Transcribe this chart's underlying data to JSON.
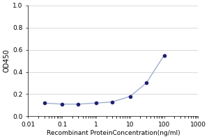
{
  "x": [
    0.03,
    0.1,
    0.3,
    1,
    3,
    10,
    30,
    100
  ],
  "y": [
    0.12,
    0.11,
    0.11,
    0.12,
    0.13,
    0.18,
    0.3,
    0.55
  ],
  "line_color": "#a0aece",
  "marker_color": "#1a1a6e",
  "marker_size": 3.5,
  "xlabel": "Recombinant ProteinConcentration(ng/ml)",
  "ylabel": "OD450",
  "xlim": [
    0.01,
    1000
  ],
  "ylim": [
    0,
    1
  ],
  "yticks": [
    0,
    0.2,
    0.4,
    0.6,
    0.8,
    1
  ],
  "xticks": [
    0.01,
    0.1,
    1,
    10,
    100,
    1000
  ],
  "xtick_labels": [
    "0.01",
    "0.1",
    "1",
    "10",
    "100",
    "1000"
  ],
  "background_color": "#ffffff",
  "grid_color": "#d8d8d8",
  "xlabel_fontsize": 6.5,
  "ylabel_fontsize": 7,
  "tick_fontsize": 6.5
}
